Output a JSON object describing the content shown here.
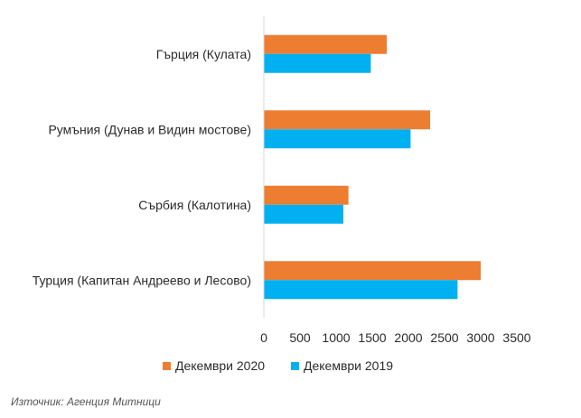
{
  "chart_data": {
    "type": "bar",
    "orientation": "horizontal",
    "categories": [
      "Гърция (Кулата)",
      "Румъния (Дунав и Видин мостове)",
      "Сърбия (Калотина)",
      "Турция (Капитан Андреево и Лесово)"
    ],
    "series": [
      {
        "name": "Декември 2020",
        "color": "#ED7D31",
        "values": [
          1700,
          2300,
          1170,
          3000
        ]
      },
      {
        "name": "Декември 2019",
        "color": "#00B0F0",
        "values": [
          1480,
          2030,
          1100,
          2680
        ]
      }
    ],
    "xlim": [
      0,
      3500
    ],
    "xticks": [
      "0",
      "500",
      "1000",
      "1500",
      "2000",
      "2500",
      "3000",
      "3500"
    ],
    "grid": false,
    "legend": "bottom"
  },
  "source": "Източник: Агенция Митници"
}
